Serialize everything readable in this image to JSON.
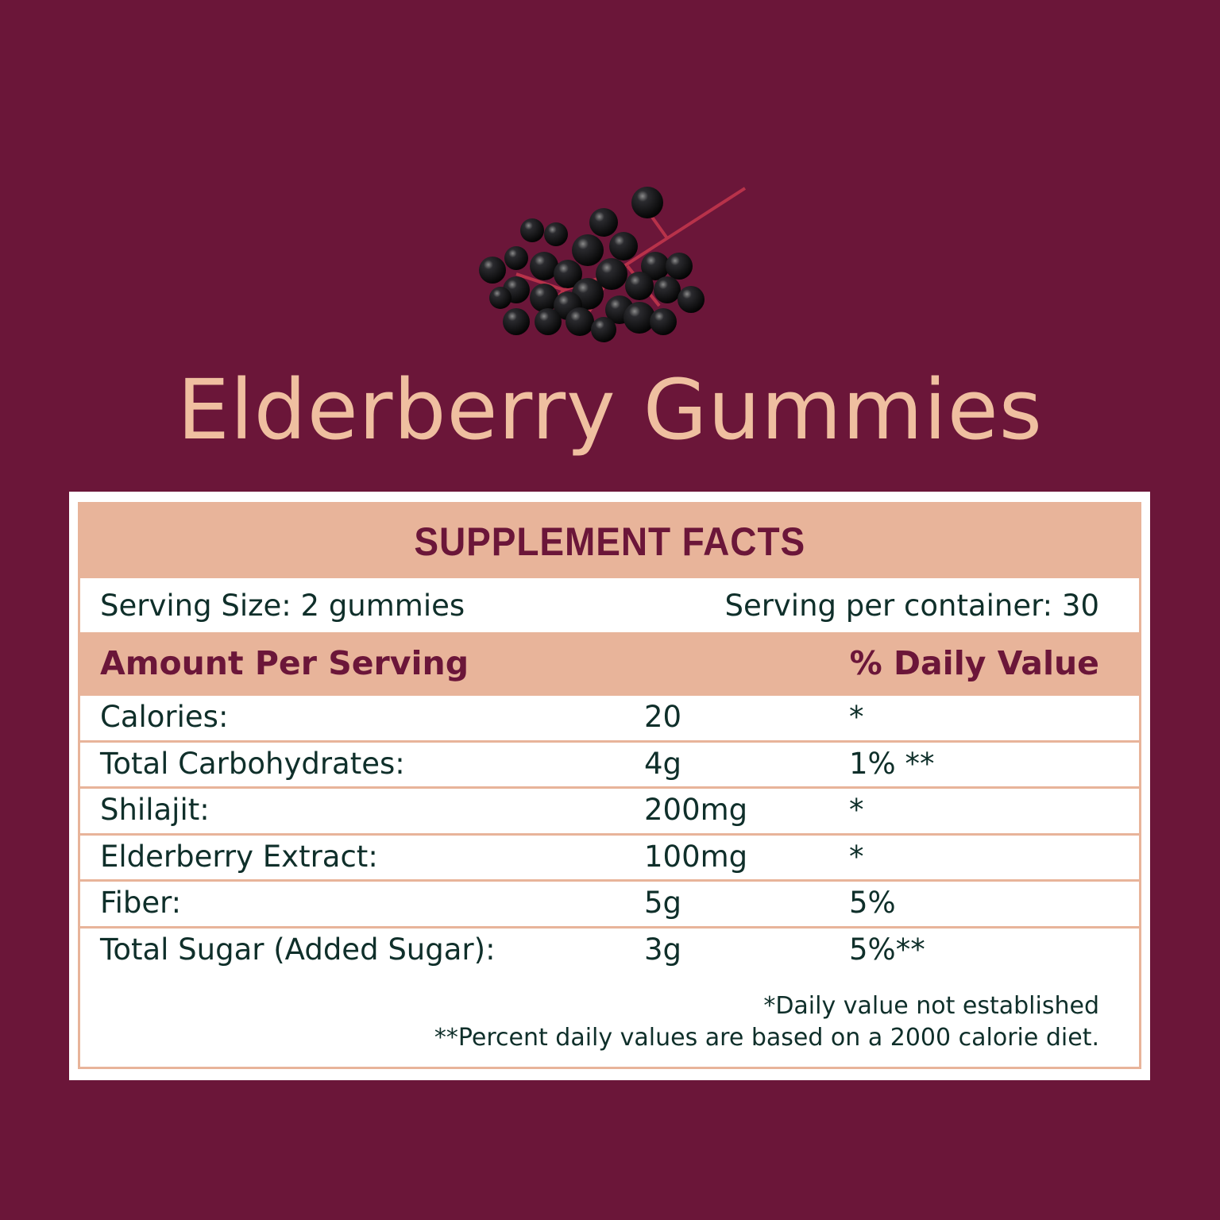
{
  "title": "Elderberry Gummies",
  "image": {
    "icon": "elderberry-cluster"
  },
  "colors": {
    "background": "#6b1639",
    "accent": "#e8b49a",
    "title": "#efbfa0",
    "text": "#0f2f2a"
  },
  "facts": {
    "heading": "SUPPLEMENT FACTS",
    "serving_size": "Serving Size: 2 gummies",
    "servings_per_container": "Serving per container: 30",
    "amount_header": "Amount Per Serving",
    "dv_header": "% Daily Value",
    "rows": [
      {
        "name": "Calories:",
        "amount": "20",
        "dv": "*"
      },
      {
        "name": "Total Carbohydrates:",
        "amount": "4g",
        "dv": "1% **"
      },
      {
        "name": "Shilajit:",
        "amount": "200mg",
        "dv": "*"
      },
      {
        "name": "Elderberry Extract:",
        "amount": "100mg",
        "dv": "*"
      },
      {
        "name": "Fiber:",
        "amount": "5g",
        "dv": "5%"
      },
      {
        "name": "Total Sugar (Added Sugar):",
        "amount": "3g",
        "dv": "5%**"
      }
    ],
    "footnotes": [
      "*Daily value not established",
      "**Percent daily values are based on a 2000 calorie diet."
    ]
  }
}
